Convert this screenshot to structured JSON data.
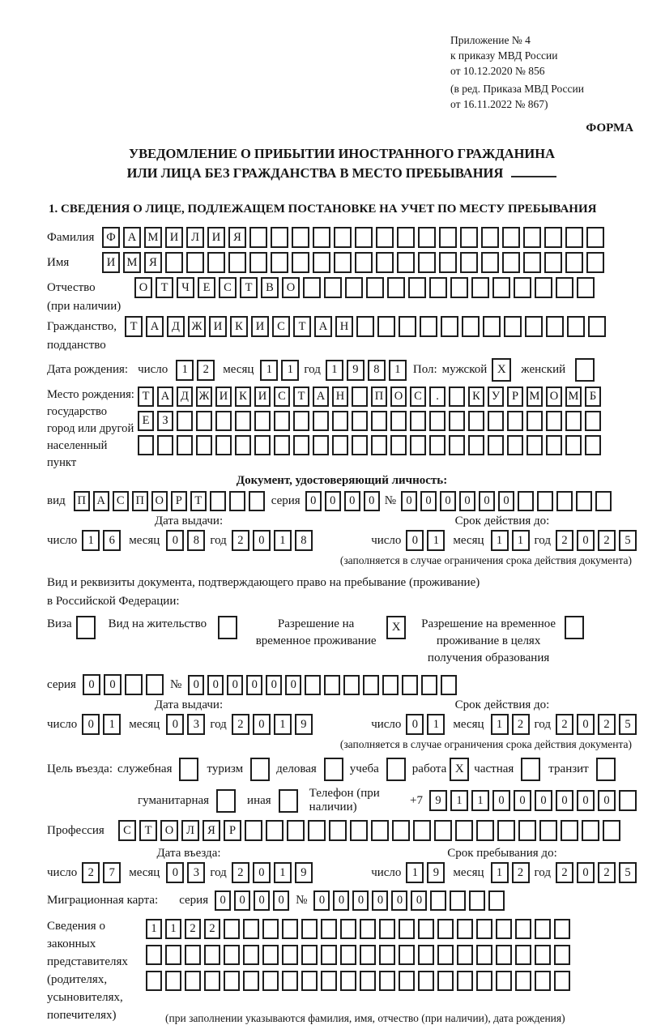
{
  "header": {
    "lines": [
      "Приложение № 4",
      "к приказу МВД России",
      "от 10.12.2020 № 856"
    ],
    "sub_lines": [
      "(в ред. Приказа МВД России",
      "от 16.11.2022 № 867)"
    ],
    "forma": "ФОРМА"
  },
  "title": {
    "line1": "УВЕДОМЛЕНИЕ О ПРИБЫТИИ ИНОСТРАННОГО ГРАЖДАНИНА",
    "line2": "ИЛИ ЛИЦА БЕЗ ГРАЖДАНСТВА В МЕСТО ПРЕБЫВАНИЯ"
  },
  "section1_heading": "1. СВЕДЕНИЯ О ЛИЦЕ, ПОДЛЕЖАЩЕМ ПОСТАНОВКЕ НА УЧЕТ ПО МЕСТУ ПРЕБЫВАНИЯ",
  "labels": {
    "den": "число",
    "mes": "месяц",
    "god": "год",
    "seriya": "серия",
    "nomer": "№",
    "plus7": "+7",
    "pol": "Пол:",
    "male": "мужской",
    "female": "женский",
    "vid": "вид"
  },
  "fields": {
    "surname": {
      "label": "Фамилия",
      "cells": {
        "t": "ФАМИЛИЯ",
        "n": 24
      }
    },
    "name": {
      "label": "Имя",
      "cells": {
        "t": "ИМЯ",
        "n": 24
      }
    },
    "patronymic": {
      "label": "Отчество",
      "label2": "(при наличии)",
      "cells": {
        "t": "ОТЧЕСТВО",
        "n": 22
      }
    },
    "citizenship": {
      "label": "Гражданство,",
      "label2": "подданство",
      "cells": {
        "t": "ТАДЖИКИСТАН",
        "n": 23
      }
    },
    "birthdate": {
      "label": "Дата рождения:",
      "d": "12",
      "m": "11",
      "y": "1981",
      "male_mark": "X",
      "female_mark": ""
    },
    "birthplace": {
      "label_lines": [
        "Место рождения:",
        "государство",
        "город или другой",
        "населенный пункт"
      ],
      "rows": [
        {
          "t": "ТАДЖИКИСТАН ПОС. КУРМОМБ",
          "n": 24
        },
        {
          "t": "ЕЗ",
          "n": 24
        },
        {
          "t": "",
          "n": 24
        }
      ]
    },
    "iddoc": {
      "heading": "Документ, удостоверяющий личность:",
      "vid_cells": {
        "t": "ПАСПОРТ",
        "n": 10
      },
      "seriya": {
        "t": "0000",
        "n": 4
      },
      "number": {
        "t": "000000",
        "n": 11
      },
      "issue_label": "Дата выдачи:",
      "issue": {
        "d": "16",
        "m": "08",
        "y": "2018"
      },
      "expiry_label": "Срок действия до:",
      "expiry": {
        "d": "01",
        "m": "11",
        "y": "2025"
      },
      "note": "(заполняется в случае ограничения срока действия документа)"
    },
    "staydoc": {
      "intro1": "Вид и реквизиты документа, подтверждающего право на пребывание (проживание)",
      "intro2": "в Российской Федерации:",
      "options": [
        {
          "label": "Виза",
          "v": ""
        },
        {
          "label": "Вид на жительство",
          "v": ""
        },
        {
          "label": "Разрешение на временное проживание",
          "v": "X"
        },
        {
          "label": "Разрешение на временное проживание в целях получения образования",
          "v": ""
        }
      ],
      "seriya": {
        "t": "00",
        "n": 4
      },
      "number": {
        "t": "000000",
        "n": 14
      },
      "issue_label": "Дата выдачи:",
      "issue": {
        "d": "01",
        "m": "03",
        "y": "2019"
      },
      "expiry_label": "Срок действия до:",
      "expiry": {
        "d": "01",
        "m": "12",
        "y": "2025"
      },
      "note": "(заполняется в случае ограничения срока действия документа)"
    },
    "purpose": {
      "label": "Цель въезда:",
      "options": [
        {
          "label": "служебная",
          "v": ""
        },
        {
          "label": "туризм",
          "v": ""
        },
        {
          "label": "деловая",
          "v": ""
        },
        {
          "label": "учеба",
          "v": ""
        },
        {
          "label": "работа",
          "v": "X"
        },
        {
          "label": "частная",
          "v": ""
        },
        {
          "label": "транзит",
          "v": ""
        },
        {
          "label": "гуманитарная",
          "v": ""
        },
        {
          "label": "иная",
          "v": ""
        }
      ]
    },
    "phone": {
      "label": "Телефон (при наличии)",
      "prefix": "+7",
      "cells": {
        "t": "911000000",
        "n": 10
      }
    },
    "profession": {
      "label": "Профессия",
      "cells": {
        "t": "СТОЛЯР",
        "n": 24
      }
    },
    "entrydates": {
      "entry_label": "Дата въезда:",
      "entry": {
        "d": "27",
        "m": "03",
        "y": "2019"
      },
      "stay_label": "Срок пребывания до:",
      "stay": {
        "d": "19",
        "m": "12",
        "y": "2025"
      }
    },
    "migcard": {
      "label": "Миграционная карта:",
      "seriya": {
        "t": "0000",
        "n": 4
      },
      "number": {
        "t": "000000",
        "n": 10
      }
    },
    "representatives": {
      "label_lines": [
        "Сведения о",
        "законных",
        "представителях",
        "(родителях,",
        "усыновителях,",
        "попечителях)"
      ],
      "rows": [
        {
          "t": "1122",
          "n": 22
        },
        {
          "t": "",
          "n": 22
        },
        {
          "t": "",
          "n": 22
        }
      ],
      "note": "(при заполнении указываются фамилия, имя, отчество (при наличии), дата рождения)"
    }
  }
}
